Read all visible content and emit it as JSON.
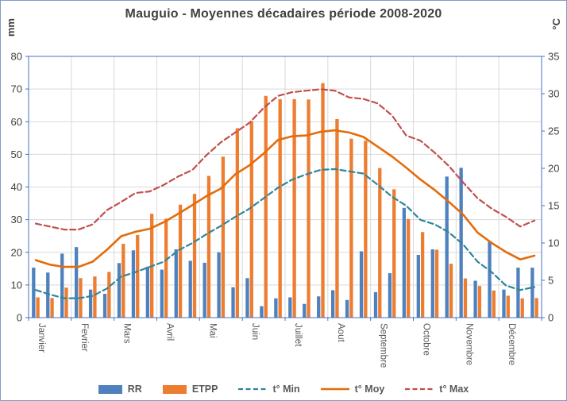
{
  "chart_data": {
    "type": "combo-bar-line",
    "title": "Mauguio - Moyennes décadaires période 2008-2020",
    "legend_position": "bottom",
    "grid": {
      "horizontal": true,
      "vertical": "month-boundaries",
      "color": "#d9d9d9"
    },
    "axis_color": "#4472c4",
    "tick_text_color": "#404040",
    "category_text_color": "#595959",
    "left_axis": {
      "title": "mm",
      "min": 0,
      "max": 80,
      "step": 10,
      "ticks": [
        0,
        10,
        20,
        30,
        40,
        50,
        60,
        70,
        80
      ]
    },
    "right_axis": {
      "title": "°C",
      "min": 0,
      "max": 35,
      "step": 5,
      "ticks": [
        0,
        5,
        10,
        15,
        20,
        25,
        30,
        35
      ]
    },
    "months": [
      "Janvier",
      "Fevrier",
      "Mars",
      "Avril",
      "Mai",
      "Juin",
      "Juillet",
      "Aout",
      "Septembre",
      "Octobre",
      "Novembre",
      "Décembre"
    ],
    "decades_per_month": 3,
    "bar_series": [
      {
        "name": "RR",
        "color": "#4e81bd",
        "axis": "left",
        "values": [
          15.3,
          13.8,
          19.6,
          21.6,
          8.6,
          7.3,
          16.7,
          20.6,
          15.6,
          14.7,
          20.9,
          17.4,
          16.8,
          20.0,
          9.3,
          12.1,
          3.5,
          5.9,
          6.2,
          4.2,
          6.5,
          8.4,
          5.4,
          20.3,
          7.8,
          13.6,
          33.6,
          19.2,
          20.9,
          43.2,
          45.9,
          11.3,
          23.5,
          8.6,
          15.3,
          15.3
        ]
      },
      {
        "name": "ETPP",
        "color": "#ed7d31",
        "axis": "left",
        "values": [
          6.2,
          6.0,
          9.2,
          12.1,
          12.6,
          14.0,
          22.6,
          25.3,
          31.8,
          30.3,
          34.6,
          37.9,
          43.4,
          49.3,
          58.0,
          60.2,
          67.9,
          66.9,
          66.9,
          66.8,
          71.8,
          60.8,
          54.8,
          54.2,
          45.8,
          39.3,
          30.2,
          26.2,
          20.8,
          16.5,
          12.0,
          9.7,
          8.3,
          6.7,
          5.9,
          6.0
        ]
      }
    ],
    "line_series": [
      {
        "name": "t° Min",
        "color": "#31859c",
        "dashed": true,
        "axis": "right",
        "values": [
          3.7,
          3.1,
          2.6,
          2.6,
          2.9,
          3.9,
          5.5,
          6.1,
          6.8,
          7.5,
          9.0,
          10.0,
          11.2,
          12.3,
          13.5,
          14.6,
          16.0,
          17.4,
          18.5,
          19.2,
          19.8,
          19.9,
          19.6,
          19.3,
          17.8,
          16.2,
          15.0,
          13.1,
          12.5,
          11.4,
          9.8,
          7.5,
          6.1,
          4.3,
          3.7,
          4.1
        ]
      },
      {
        "name": "t° Moy",
        "color": "#e46c0a",
        "dashed": false,
        "axis": "right",
        "values": [
          7.7,
          7.1,
          6.8,
          6.8,
          7.5,
          9.1,
          10.9,
          11.5,
          11.9,
          12.8,
          13.9,
          15.1,
          16.3,
          17.3,
          19.2,
          20.4,
          22.0,
          23.8,
          24.3,
          24.4,
          24.9,
          25.1,
          24.8,
          24.2,
          22.9,
          21.6,
          20.1,
          18.5,
          17.1,
          15.5,
          13.8,
          11.4,
          10.0,
          8.8,
          7.8,
          8.3
        ]
      },
      {
        "name": "t° Max",
        "color": "#c0504d",
        "dashed": true,
        "axis": "right",
        "values": [
          12.6,
          12.2,
          11.8,
          11.8,
          12.5,
          14.4,
          15.5,
          16.7,
          16.9,
          17.8,
          18.9,
          19.8,
          21.8,
          23.5,
          24.8,
          26.1,
          28.1,
          29.7,
          30.2,
          30.4,
          30.6,
          30.4,
          29.5,
          29.3,
          28.7,
          27.1,
          24.4,
          23.7,
          22.1,
          20.3,
          18.1,
          16.0,
          14.6,
          13.5,
          12.2,
          13.0
        ]
      }
    ]
  }
}
